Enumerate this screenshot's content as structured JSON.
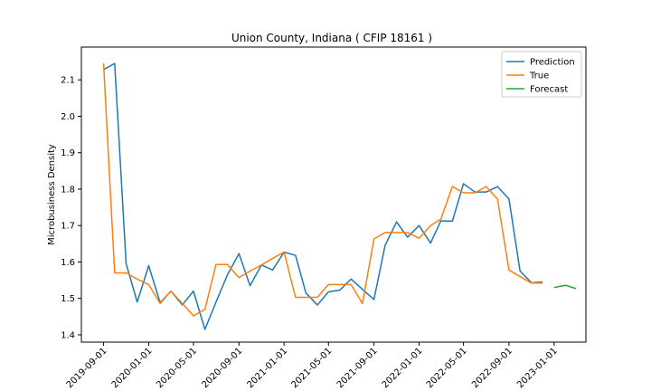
{
  "chart_data": {
    "type": "line",
    "title": "Union County, Indiana ( CFIP 18161 )",
    "xlabel": "",
    "ylabel": "Microbusiness Density",
    "ylim": [
      1.38,
      2.19
    ],
    "xlim": [
      "2019-07-03",
      "2023-03-28"
    ],
    "grid": false,
    "legend_position": "top-right",
    "y_ticks": [
      1.4,
      1.5,
      1.6,
      1.7,
      1.8,
      1.9,
      2.0,
      2.1
    ],
    "y_tick_labels": [
      "1.4",
      "1.5",
      "1.6",
      "1.7",
      "1.8",
      "1.9",
      "2.0",
      "2.1"
    ],
    "x_ticks": [
      "2019-09-01",
      "2020-01-01",
      "2020-05-01",
      "2020-09-01",
      "2021-01-01",
      "2021-05-01",
      "2021-09-01",
      "2022-01-01",
      "2022-05-01",
      "2022-09-01",
      "2023-01-01"
    ],
    "x_tick_labels": [
      "2019-09-01",
      "2020-01-01",
      "2020-05-01",
      "2020-09-01",
      "2021-01-01",
      "2021-05-01",
      "2021-09-01",
      "2022-01-01",
      "2022-05-01",
      "2022-09-01",
      "2023-01-01"
    ],
    "series": [
      {
        "name": "Prediction",
        "color": "#1f77b4",
        "x": [
          "2019-09-01",
          "2019-10-01",
          "2019-11-01",
          "2019-12-01",
          "2020-01-01",
          "2020-02-01",
          "2020-03-01",
          "2020-04-01",
          "2020-05-01",
          "2020-06-01",
          "2020-07-01",
          "2020-08-01",
          "2020-09-01",
          "2020-10-01",
          "2020-11-01",
          "2020-12-01",
          "2021-01-01",
          "2021-02-01",
          "2021-03-01",
          "2021-04-01",
          "2021-05-01",
          "2021-06-01",
          "2021-07-01",
          "2021-08-01",
          "2021-09-01",
          "2021-10-01",
          "2021-11-01",
          "2021-12-01",
          "2022-01-01",
          "2022-02-01",
          "2022-03-01",
          "2022-04-01",
          "2022-05-01",
          "2022-06-01",
          "2022-07-01",
          "2022-08-01",
          "2022-09-01",
          "2022-10-01",
          "2022-11-01",
          "2022-12-01"
        ],
        "y": [
          2.128,
          2.145,
          1.595,
          1.49,
          1.59,
          1.488,
          1.52,
          1.482,
          1.52,
          1.415,
          1.49,
          1.565,
          1.623,
          1.535,
          1.592,
          1.578,
          1.627,
          1.618,
          1.515,
          1.482,
          1.518,
          1.523,
          1.553,
          1.525,
          1.497,
          1.645,
          1.71,
          1.668,
          1.7,
          1.652,
          1.713,
          1.712,
          1.815,
          1.792,
          1.792,
          1.807,
          1.773,
          1.575,
          1.543,
          1.545
        ]
      },
      {
        "name": "True",
        "color": "#ff7f0e",
        "x": [
          "2019-09-01",
          "2019-10-01",
          "2019-11-01",
          "2019-12-01",
          "2020-01-01",
          "2020-02-01",
          "2020-03-01",
          "2020-04-01",
          "2020-05-01",
          "2020-06-01",
          "2020-07-01",
          "2020-08-01",
          "2020-09-01",
          "2020-10-01",
          "2020-11-01",
          "2020-12-01",
          "2021-01-01",
          "2021-02-01",
          "2021-03-01",
          "2021-04-01",
          "2021-05-01",
          "2021-06-01",
          "2021-07-01",
          "2021-08-01",
          "2021-09-01",
          "2021-10-01",
          "2021-11-01",
          "2021-12-01",
          "2022-01-01",
          "2022-02-01",
          "2022-03-01",
          "2022-04-01",
          "2022-05-01",
          "2022-06-01",
          "2022-07-01",
          "2022-08-01",
          "2022-09-01",
          "2022-10-01",
          "2022-11-01",
          "2022-12-01"
        ],
        "y": [
          2.145,
          1.57,
          1.57,
          1.553,
          1.538,
          1.486,
          1.52,
          1.486,
          1.452,
          1.47,
          1.593,
          1.593,
          1.557,
          1.575,
          1.592,
          1.61,
          1.627,
          1.503,
          1.503,
          1.503,
          1.538,
          1.538,
          1.538,
          1.486,
          1.663,
          1.681,
          1.681,
          1.681,
          1.665,
          1.7,
          1.718,
          1.807,
          1.79,
          1.79,
          1.807,
          1.773,
          1.578,
          1.56,
          1.542,
          1.542
        ]
      },
      {
        "name": "Forecast",
        "color": "#2ca02c",
        "x": [
          "2023-01-01",
          "2023-02-01",
          "2023-03-01"
        ],
        "y": [
          1.53,
          1.536,
          1.527
        ]
      }
    ]
  }
}
